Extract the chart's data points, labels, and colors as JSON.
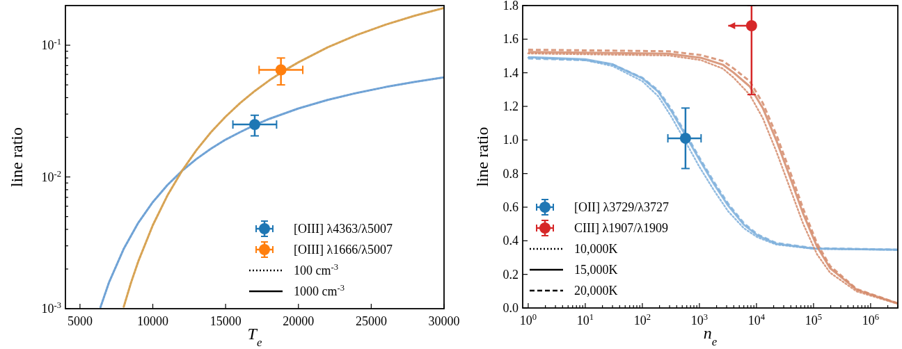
{
  "chart_data": [
    {
      "type": "line",
      "xlabel": "T$_{e}$",
      "ylabel": "line ratio",
      "log": "y",
      "legend": "bottom right",
      "xlim": [
        4000,
        30000
      ],
      "ylim": [
        0.001,
        0.2
      ],
      "xticks": [
        5000,
        10000,
        15000,
        20000,
        25000,
        30000
      ],
      "yticks": [
        {
          "value": 0.001,
          "label": "10$^{-3}$"
        },
        {
          "value": 0.01,
          "label": "10$^{-2}$"
        },
        {
          "value": 0.1,
          "label": "10$^{-1}$"
        },
        {
          "value": 0.002,
          "label": null
        },
        {
          "value": 0.003,
          "label": null
        },
        {
          "value": 0.004,
          "label": null
        },
        {
          "value": 0.005,
          "label": null
        },
        {
          "value": 0.006,
          "label": null
        },
        {
          "value": 0.007,
          "label": null
        },
        {
          "value": 0.008,
          "label": null
        },
        {
          "value": 0.009,
          "label": null
        },
        {
          "value": 0.02,
          "label": null
        },
        {
          "value": 0.03,
          "label": null
        },
        {
          "value": 0.04,
          "label": null
        },
        {
          "value": 0.05,
          "label": null
        },
        {
          "value": 0.06,
          "label": null
        },
        {
          "value": 0.07,
          "label": null
        },
        {
          "value": 0.08,
          "label": null
        },
        {
          "value": 0.09,
          "label": null
        }
      ],
      "series": [
        {
          "type": "line",
          "color": "#6a9fd4",
          "line_style": "solid",
          "x": [
            6400,
            7000,
            8000,
            9000,
            10000,
            11000,
            12000,
            13000,
            14000,
            15000,
            16000,
            17000,
            18000,
            20000,
            22000,
            24000,
            26000,
            28000,
            30000
          ],
          "values": [
            0.00102,
            0.00159,
            0.00284,
            0.00448,
            0.00644,
            0.00867,
            0.0111,
            0.0137,
            0.0164,
            0.0192,
            0.0219,
            0.0248,
            0.0276,
            0.0331,
            0.0384,
            0.0434,
            0.0482,
            0.0527,
            0.057
          ]
        },
        {
          "type": "line",
          "color": "#6a9fd4",
          "line_style": "dotted",
          "x": [
            6400,
            7000,
            8000,
            9000,
            10000,
            11000,
            12000,
            13000,
            14000,
            15000,
            16000,
            17000,
            18000,
            20000,
            22000,
            24000,
            26000,
            28000,
            30000
          ],
          "values": [
            0.00102,
            0.00159,
            0.00284,
            0.00448,
            0.00644,
            0.00867,
            0.0111,
            0.0137,
            0.0164,
            0.0192,
            0.0219,
            0.0248,
            0.0276,
            0.0331,
            0.0384,
            0.0434,
            0.0482,
            0.0527,
            0.057
          ]
        },
        {
          "type": "line",
          "color": "#d6a04d",
          "line_style": "solid",
          "x": [
            8000,
            8500,
            9000,
            10000,
            11000,
            12000,
            13000,
            14000,
            15000,
            16000,
            17000,
            18000,
            19000,
            20000,
            22000,
            24000,
            26000,
            28000,
            30000
          ],
          "values": [
            0.00103,
            0.00157,
            0.00228,
            0.0043,
            0.00722,
            0.0111,
            0.016,
            0.0219,
            0.0287,
            0.0364,
            0.0449,
            0.0541,
            0.0639,
            0.0742,
            0.0963,
            0.1194,
            0.1434,
            0.1677,
            0.192
          ]
        },
        {
          "type": "line",
          "color": "#d6a04d",
          "line_style": "dotted",
          "x": [
            8000,
            8500,
            9000,
            10000,
            11000,
            12000,
            13000,
            14000,
            15000,
            16000,
            17000,
            18000,
            19000,
            20000,
            22000,
            24000,
            26000,
            28000,
            30000
          ],
          "values": [
            0.00103,
            0.00157,
            0.00228,
            0.0043,
            0.00722,
            0.0111,
            0.016,
            0.0219,
            0.0287,
            0.0364,
            0.0449,
            0.0541,
            0.0639,
            0.0742,
            0.0963,
            0.1194,
            0.1434,
            0.1677,
            0.192
          ]
        },
        {
          "type": "scatter",
          "name": "[OIII] λ4363/λ5007",
          "color": "#1f77b4",
          "marker": "circle",
          "x": [
            17000
          ],
          "values": [
            0.025
          ],
          "errors": [
            [
              0.0205,
              0.0294
            ]
          ],
          "xerrors": [
            [
              15500,
              18500
            ]
          ]
        },
        {
          "type": "scatter",
          "name": "[OIII] λ1666/λ5007",
          "color": "#ff7f0e",
          "marker": "circle",
          "x": [
            18800
          ],
          "values": [
            0.065
          ],
          "errors": [
            [
              0.05,
              0.08
            ]
          ],
          "xerrors": [
            [
              17300,
              20300
            ]
          ]
        },
        {
          "name": "100 cm$^{-3}$",
          "color": "#000000",
          "line_style": "dotted"
        },
        {
          "name": "1000 cm$^{-3}$",
          "color": "#000000",
          "line_style": "solid"
        }
      ]
    },
    {
      "type": "line",
      "xlabel": "n$_{e}$",
      "ylabel": "line ratio",
      "log": "x",
      "legend": "bottom left",
      "xlim": [
        0.8,
        3000000
      ],
      "ylim": [
        0,
        1.8
      ],
      "xticks": [
        {
          "value": 1,
          "label": "10$^{0}$"
        },
        {
          "value": 10,
          "label": "10$^{1}$"
        },
        {
          "value": 100,
          "label": "10$^{2}$"
        },
        {
          "value": 1000,
          "label": "10$^{3}$"
        },
        {
          "value": 10000,
          "label": "10$^{4}$"
        },
        {
          "value": 100000,
          "label": "10$^{5}$"
        },
        {
          "value": 1000000,
          "label": "10$^{6}$"
        },
        {
          "value": 2,
          "label": null
        },
        {
          "value": 3,
          "label": null
        },
        {
          "value": 4,
          "label": null
        },
        {
          "value": 5,
          "label": null
        },
        {
          "value": 6,
          "label": null
        },
        {
          "value": 7,
          "label": null
        },
        {
          "value": 8,
          "label": null
        },
        {
          "value": 9,
          "label": null
        },
        {
          "value": 20,
          "label": null
        },
        {
          "value": 30,
          "label": null
        },
        {
          "value": 40,
          "label": null
        },
        {
          "value": 50,
          "label": null
        },
        {
          "value": 60,
          "label": null
        },
        {
          "value": 70,
          "label": null
        },
        {
          "value": 80,
          "label": null
        },
        {
          "value": 90,
          "label": null
        },
        {
          "value": 200,
          "label": null
        },
        {
          "value": 300,
          "label": null
        },
        {
          "value": 400,
          "label": null
        },
        {
          "value": 500,
          "label": null
        },
        {
          "value": 600,
          "label": null
        },
        {
          "value": 700,
          "label": null
        },
        {
          "value": 800,
          "label": null
        },
        {
          "value": 900,
          "label": null
        },
        {
          "value": 2000,
          "label": null
        },
        {
          "value": 3000,
          "label": null
        },
        {
          "value": 4000,
          "label": null
        },
        {
          "value": 5000,
          "label": null
        },
        {
          "value": 6000,
          "label": null
        },
        {
          "value": 7000,
          "label": null
        },
        {
          "value": 8000,
          "label": null
        },
        {
          "value": 9000,
          "label": null
        },
        {
          "value": 20000,
          "label": null
        },
        {
          "value": 30000,
          "label": null
        },
        {
          "value": 40000,
          "label": null
        },
        {
          "value": 50000,
          "label": null
        },
        {
          "value": 60000,
          "label": null
        },
        {
          "value": 70000,
          "label": null
        },
        {
          "value": 80000,
          "label": null
        },
        {
          "value": 90000,
          "label": null
        },
        {
          "value": 200000,
          "label": null
        },
        {
          "value": 300000,
          "label": null
        },
        {
          "value": 400000,
          "label": null
        },
        {
          "value": 500000,
          "label": null
        },
        {
          "value": 600000,
          "label": null
        },
        {
          "value": 700000,
          "label": null
        },
        {
          "value": 800000,
          "label": null
        },
        {
          "value": 900000,
          "label": null
        },
        {
          "value": 2000000,
          "label": null
        },
        {
          "value": 3000000,
          "label": null
        }
      ],
      "yticks": [
        {
          "value": 0,
          "label": "0.0"
        },
        0.2,
        0.4,
        0.6,
        0.8,
        {
          "value": 1,
          "label": "1.0"
        },
        1.2,
        1.4,
        1.6,
        1.8
      ],
      "series": [
        {
          "type": "line",
          "color": "#7fb0dc",
          "line_style": "dotted",
          "x": [
            1,
            10,
            30,
            100,
            190,
            320,
            570,
            1000,
            1800,
            3200,
            6000,
            10500,
            22000,
            100000,
            3000000
          ],
          "values": [
            1.49,
            1.475,
            1.44,
            1.35,
            1.26,
            1.14,
            0.99,
            0.84,
            0.7,
            0.575,
            0.475,
            0.42,
            0.378,
            0.352,
            0.346
          ]
        },
        {
          "type": "line",
          "color": "#7fb0dc",
          "line_style": "solid",
          "x": [
            1,
            10,
            30,
            100,
            190,
            320,
            570,
            1000,
            1800,
            3200,
            6000,
            10500,
            22000,
            100000,
            3000000
          ],
          "values": [
            1.493,
            1.48,
            1.45,
            1.367,
            1.287,
            1.174,
            1.028,
            0.883,
            0.738,
            0.609,
            0.496,
            0.431,
            0.383,
            0.354,
            0.347
          ]
        },
        {
          "type": "line",
          "color": "#7fb0dc",
          "line_style": "dashed",
          "x": [
            1,
            10,
            30,
            100,
            190,
            320,
            570,
            1000,
            1800,
            3200,
            6000,
            10500,
            22000,
            100000,
            3000000
          ],
          "values": [
            1.485,
            1.475,
            1.45,
            1.37,
            1.295,
            1.185,
            1.04,
            0.895,
            0.75,
            0.62,
            0.505,
            0.437,
            0.387,
            0.356,
            0.347
          ]
        },
        {
          "type": "line",
          "color": "#d4896a",
          "line_style": "dotted",
          "x": [
            1,
            290,
            1070,
            2570,
            4000,
            7600,
            12900,
            22400,
            38000,
            66000,
            115000,
            195000,
            575000,
            3000000
          ],
          "values": [
            1.515,
            1.503,
            1.475,
            1.425,
            1.37,
            1.27,
            1.13,
            0.93,
            0.72,
            0.5,
            0.32,
            0.21,
            0.098,
            0.025
          ]
        },
        {
          "type": "line",
          "color": "#d4896a",
          "line_style": "solid",
          "x": [
            1,
            290,
            1070,
            2570,
            4000,
            7600,
            12900,
            22400,
            38000,
            66000,
            115000,
            195000,
            575000,
            3000000
          ],
          "values": [
            1.524,
            1.513,
            1.489,
            1.448,
            1.4,
            1.319,
            1.19,
            0.996,
            0.786,
            0.56,
            0.366,
            0.237,
            0.108,
            0.027
          ]
        },
        {
          "type": "line",
          "color": "#d4896a",
          "line_style": "dashed",
          "x": [
            1,
            290,
            1070,
            2570,
            4000,
            7600,
            12900,
            22400,
            38000,
            66000,
            115000,
            195000,
            575000,
            3000000
          ],
          "values": [
            1.537,
            1.528,
            1.505,
            1.47,
            1.425,
            1.35,
            1.22,
            1.03,
            0.82,
            0.59,
            0.385,
            0.25,
            0.112,
            0.028
          ]
        },
        {
          "type": "scatter",
          "name": "[OII] λ3729/λ3727",
          "color": "#1f77b4",
          "marker": "circle",
          "x": [
            570
          ],
          "values": [
            1.01
          ],
          "errors": [
            [
              0.83,
              1.19
            ]
          ],
          "xerrors": [
            [
              280,
              1070
            ]
          ]
        },
        {
          "type": "scatter",
          "name": "CIII] λ1907/λ1909",
          "color": "#d62728",
          "marker": "circle",
          "x": [
            8200
          ],
          "values": [
            1.68
          ],
          "errors": [
            [
              1.27,
              1.8
            ]
          ],
          "xerrors": [
            [
              3200,
              8200
            ]
          ]
        },
        {
          "name": "10,000K",
          "color": "#000000",
          "line_style": "dotted"
        },
        {
          "name": "15,000K",
          "color": "#000000",
          "line_style": "solid"
        },
        {
          "name": "20,000K",
          "color": "#000000",
          "line_style": "dashed"
        }
      ]
    }
  ]
}
